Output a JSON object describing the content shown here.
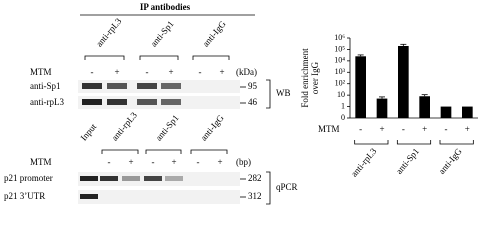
{
  "wb": {
    "header": "IP antibodies",
    "antibodies": [
      "anti-rpL3",
      "anti-Sp1",
      "anti-IgG"
    ],
    "mtm_label": "MTM",
    "mtm": [
      "-",
      "+",
      "-",
      "+",
      "-",
      "+"
    ],
    "unit": "(kDa)",
    "rows": [
      {
        "label": "anti-Sp1",
        "size": "95"
      },
      {
        "label": "anti-rpL3",
        "size": "46"
      }
    ],
    "method": "WB"
  },
  "pcr": {
    "columns": [
      "Input",
      "anti-rpL3",
      "anti-Sp1",
      "anti-IgG"
    ],
    "mtm_label": "MTM",
    "mtm": [
      "-",
      "+",
      "-",
      "+",
      "-",
      "+"
    ],
    "unit": "(bp)",
    "rows": [
      {
        "label": "p21 promoter",
        "size": "282"
      },
      {
        "label": "p21 3’UTR",
        "size": "312"
      }
    ],
    "method": "qPCR"
  },
  "chart_data": {
    "type": "bar",
    "y_label": [
      "Fold enrichment",
      "over IgG"
    ],
    "x_label": "MTM",
    "categories": [
      "-",
      "+",
      "-",
      "+",
      "-",
      "+"
    ],
    "groups": [
      "anti-rpL3",
      "anti-Sp1",
      "anti-IgG"
    ],
    "values": [
      25000,
      5,
      200000,
      8,
      1,
      1
    ],
    "errors": [
      8000,
      2,
      80000,
      3,
      0,
      0
    ],
    "color": "#000000",
    "log_scale": true,
    "ylim": [
      0.1,
      1000000
    ],
    "yticks": [
      {
        "value": 0.1,
        "label": "0"
      },
      1,
      10,
      {
        "value": 100,
        "label": "10²"
      },
      {
        "value": 1000,
        "label": "10³"
      },
      {
        "value": 10000,
        "label": "10⁴"
      },
      {
        "value": 100000,
        "label": "10⁵"
      },
      {
        "value": 1000000,
        "label": "10⁶"
      }
    ]
  }
}
